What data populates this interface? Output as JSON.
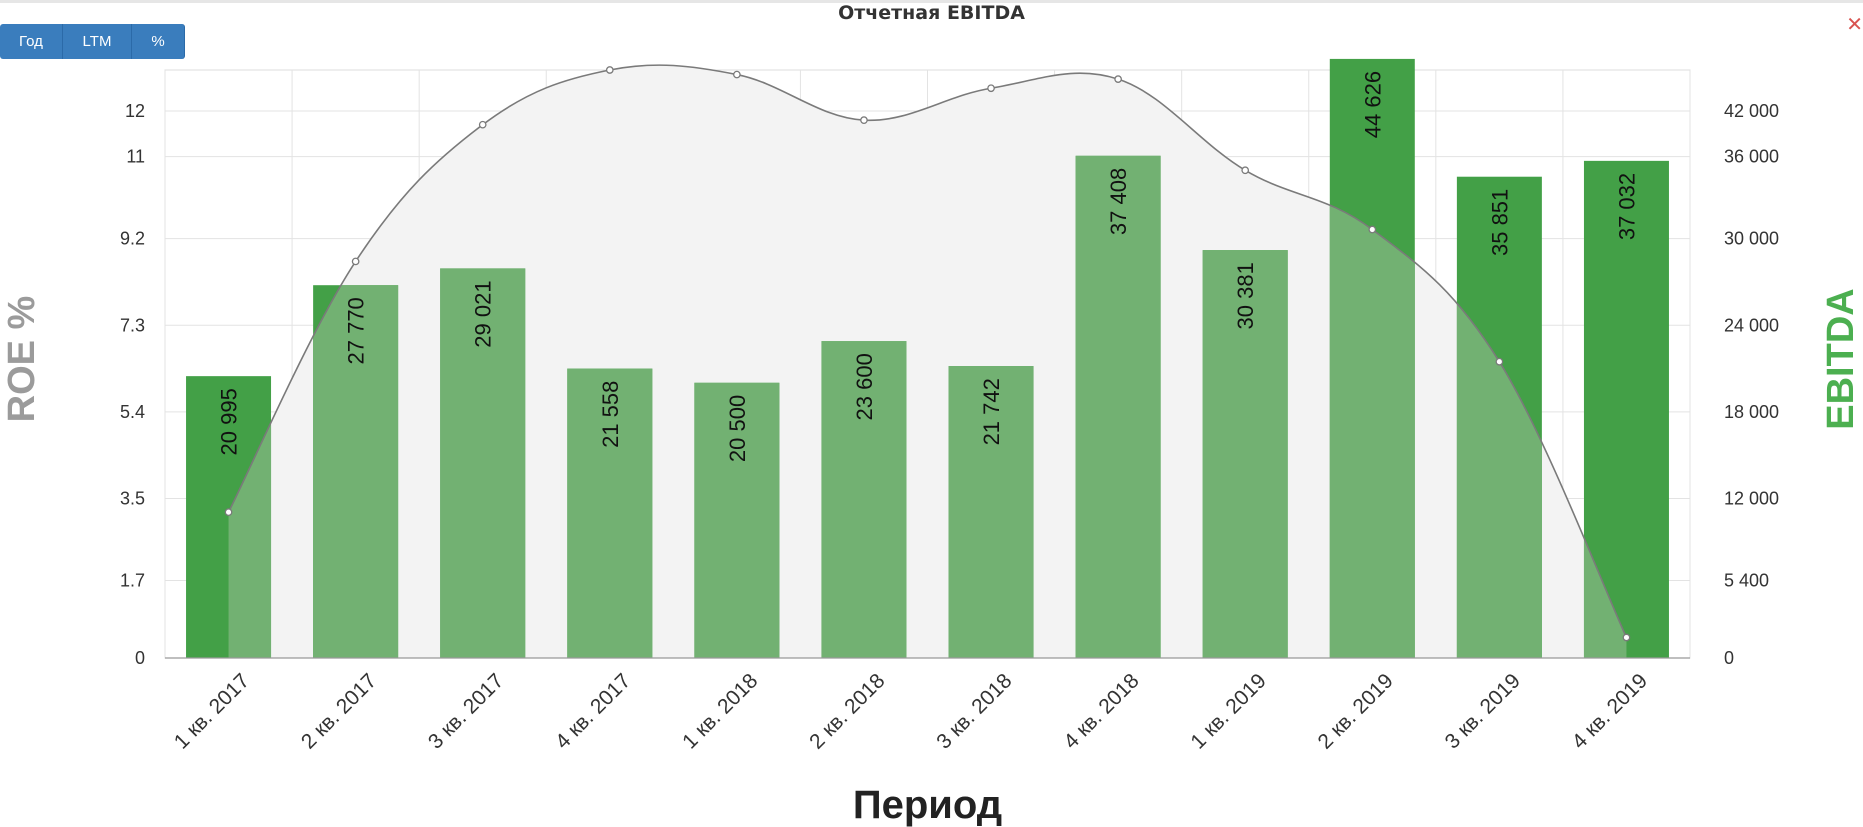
{
  "header": {
    "title": "Отчетная EBITDA",
    "buttons": [
      "Год",
      "LTM",
      "%"
    ],
    "close_icon": "close-icon"
  },
  "colors": {
    "bar_dark": "#43a047",
    "bar_light": "#72b172",
    "line": "#7a7a7a",
    "area": "#f3f3f3",
    "left_title": "#9b9b9b",
    "right_title": "#4caf50",
    "button": "#3a7dbd"
  },
  "chart_data": {
    "type": "bar",
    "title": "Отчетная EBITDA",
    "xlabel": "Период",
    "ylabel_left": "ROE %",
    "ylabel_right": "EBITDA",
    "categories": [
      "1 кв. 2017",
      "2 кв. 2017",
      "3 кв. 2017",
      "4 кв. 2017",
      "1 кв. 2018",
      "2 кв. 2018",
      "3 кв. 2018",
      "4 кв. 2018",
      "1 кв. 2019",
      "2 кв. 2019",
      "3 кв. 2019",
      "4 кв. 2019"
    ],
    "y_left_ticks": [
      "0",
      "1.7",
      "3.5",
      "5.4",
      "7.3",
      "9.2",
      "11",
      "12"
    ],
    "y_right_ticks": [
      "0",
      "5 400",
      "12 000",
      "18 000",
      "24 000",
      "30 000",
      "36 000",
      "42 000"
    ],
    "y_left_lim": [
      0,
      12.9
    ],
    "y_right_lim": [
      0,
      43800
    ],
    "grid": true,
    "series": [
      {
        "name": "EBITDA",
        "type": "bar",
        "axis": "right",
        "values": [
          20995,
          27770,
          29021,
          21558,
          20500,
          23600,
          21742,
          37408,
          30381,
          44626,
          35851,
          37032
        ],
        "labels": [
          "20 995",
          "27 770",
          "29 021",
          "21 558",
          "20 500",
          "23 600",
          "21 742",
          "37 408",
          "30 381",
          "44 626",
          "35 851",
          "37 032"
        ]
      },
      {
        "name": "ROE %",
        "type": "area-spline",
        "axis": "left",
        "values": [
          3.2,
          8.7,
          11.7,
          12.9,
          12.8,
          11.8,
          12.5,
          12.7,
          10.7,
          9.4,
          6.5,
          0.45
        ]
      }
    ]
  }
}
